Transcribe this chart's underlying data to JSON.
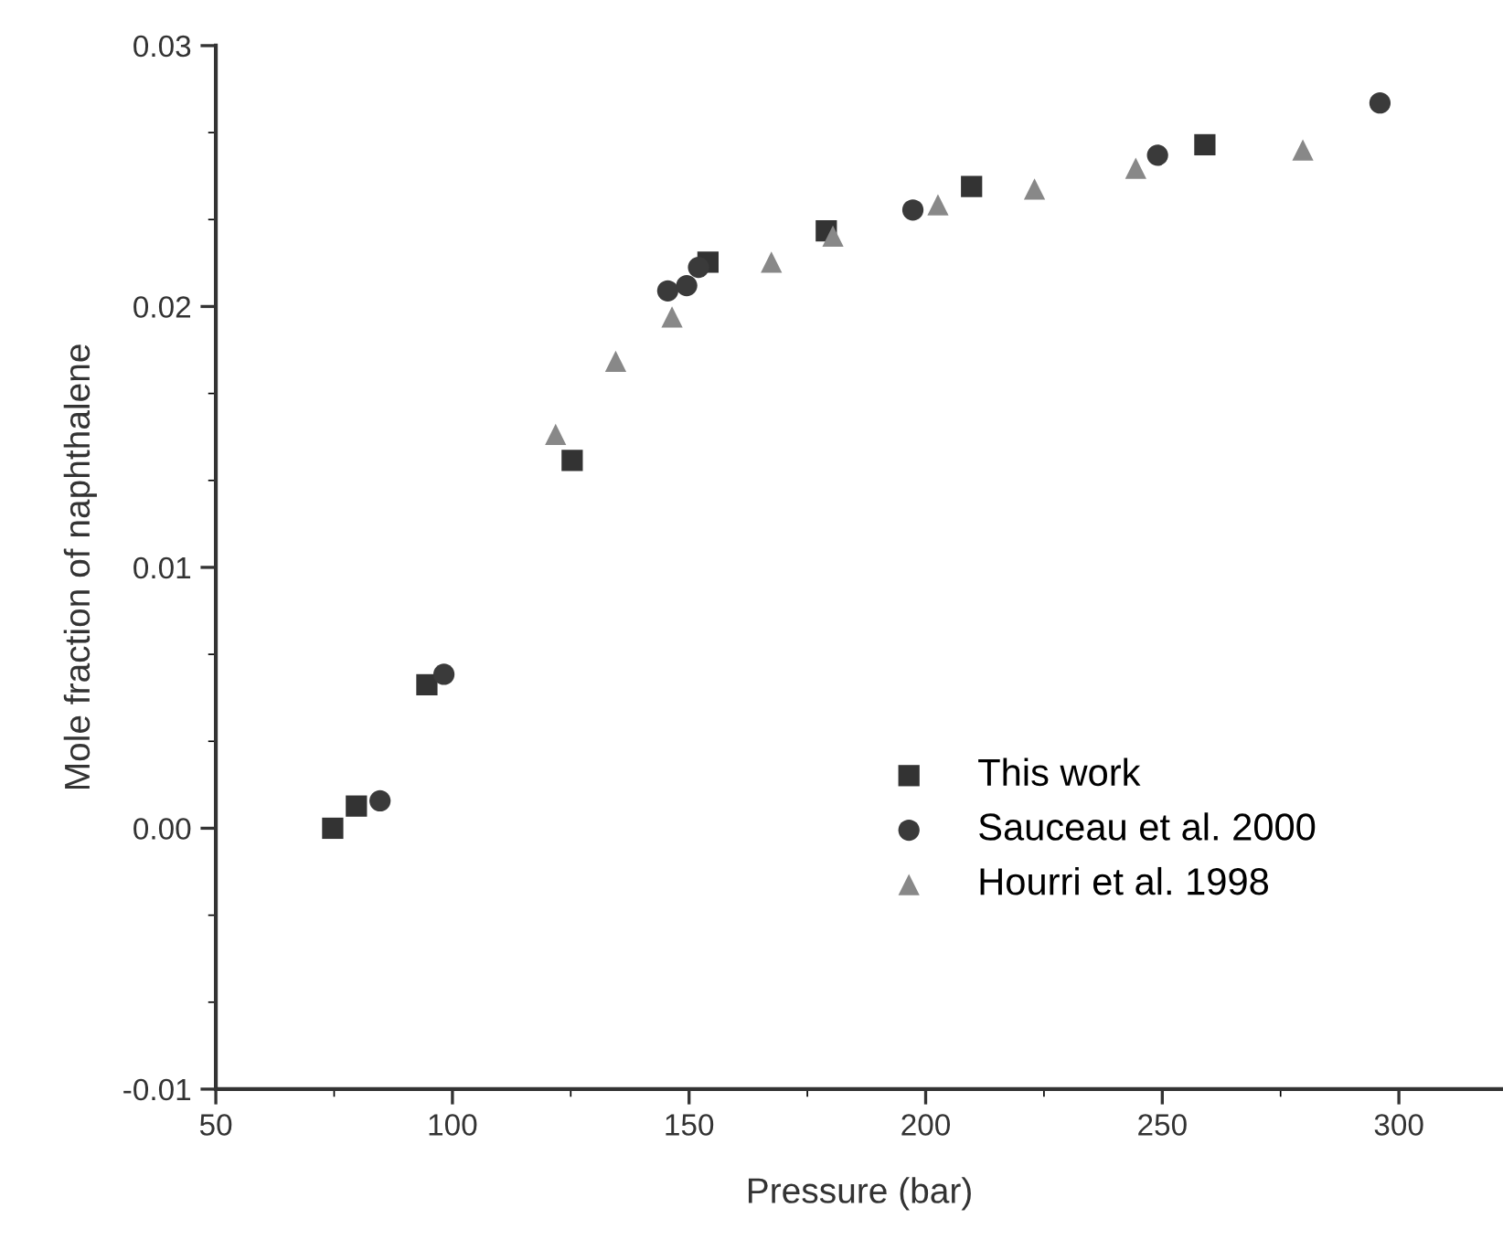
{
  "chart_data": {
    "type": "scatter",
    "xlabel": "Pressure (bar)",
    "ylabel": "Mole fraction of naphthalene",
    "xlim": [
      50,
      322
    ],
    "xticks": [
      50,
      100,
      150,
      200,
      250,
      300
    ],
    "ylim": [
      -0.01,
      0.03
    ],
    "yticks": [
      {
        "value": -0.01,
        "label": "-0.01"
      },
      {
        "value": 0.0,
        "label": "0.00"
      },
      {
        "value": 0.01,
        "label": "0.01"
      },
      {
        "value": 0.02,
        "label": "0.02"
      },
      {
        "value": 0.03,
        "label": "0.03"
      }
    ],
    "grid": false,
    "legend": "bottom right",
    "series": [
      {
        "name": "This work",
        "color": "#333333",
        "marker": "square",
        "x": [
          74.7,
          79.7,
          94.6,
          125.3,
          154,
          179,
          209.7,
          259
        ],
        "values": [
          0.0,
          0.00085,
          0.0055,
          0.0141,
          0.0217,
          0.0229,
          0.0246,
          0.0262
        ]
      },
      {
        "name": "Sauceau et al. 2000",
        "color": "#3a3a3a",
        "marker": "circle",
        "x": [
          84.7,
          98.2,
          145.5,
          149.5,
          152,
          197.3,
          249,
          296
        ],
        "values": [
          0.00105,
          0.0059,
          0.0206,
          0.0208,
          0.0215,
          0.0237,
          0.0258,
          0.0278
        ]
      },
      {
        "name": "Hourri et al. 1998",
        "color": "#888888",
        "marker": "triangle",
        "x": [
          121.8,
          134.5,
          146.4,
          167.4,
          180.4,
          202.6,
          223,
          244.4,
          279.7
        ],
        "values": [
          0.0151,
          0.0179,
          0.0196,
          0.0217,
          0.0227,
          0.0239,
          0.0245,
          0.0253,
          0.026
        ]
      }
    ]
  }
}
